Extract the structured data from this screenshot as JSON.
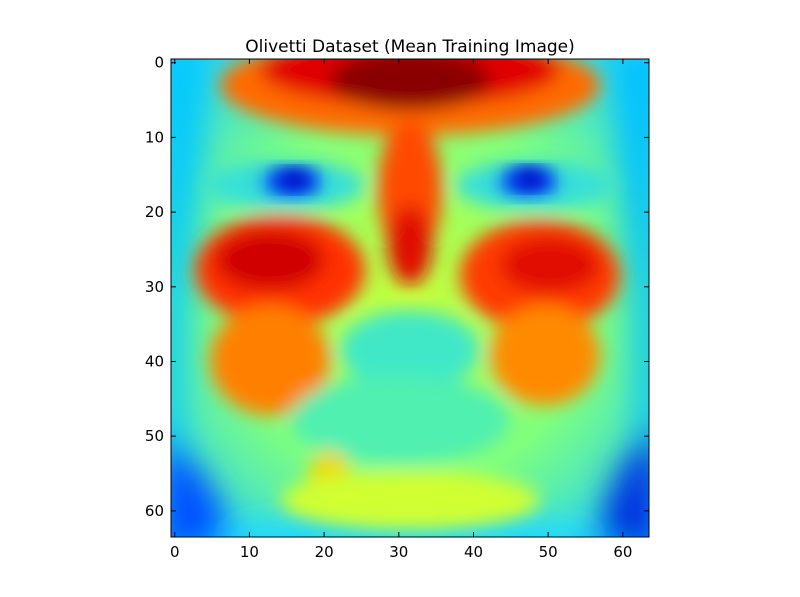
{
  "chart_data": {
    "type": "heatmap",
    "title": "Olivetti Dataset (Mean Training Image)",
    "xlabel": "",
    "ylabel": "",
    "colormap": "jet",
    "image_size": [
      64,
      64
    ],
    "xlim": [
      -0.5,
      63.5
    ],
    "ylim": [
      63.5,
      -0.5
    ],
    "x_ticks": [
      0,
      10,
      20,
      30,
      40,
      50,
      60
    ],
    "y_ticks": [
      0,
      10,
      20,
      30,
      40,
      50,
      60
    ],
    "x_tick_labels": [
      "0",
      "10",
      "20",
      "30",
      "40",
      "50",
      "60"
    ],
    "y_tick_labels": [
      "0",
      "10",
      "20",
      "30",
      "40",
      "50",
      "60"
    ],
    "grid": false,
    "colorbar": false,
    "value_range": [
      0,
      1
    ]
  }
}
